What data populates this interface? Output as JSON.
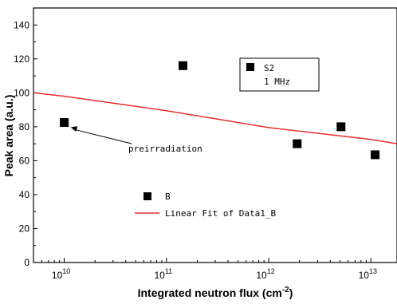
{
  "chart_data": {
    "type": "scatter",
    "xlabel": "Integrated neutron flux (cm-2)",
    "xlabel_base": "Integrated neutron flux (cm",
    "xlabel_exp": "-2",
    "xlabel_close": ")",
    "ylabel": "Peak area (a.u.)",
    "xscale": "log",
    "xlim": [
      5000000000.0,
      18000000000000.0
    ],
    "ylim": [
      0,
      150
    ],
    "xticks": [
      10000000000.0,
      100000000000.0,
      1000000000000.0,
      10000000000000.0
    ],
    "xtick_labels": [
      {
        "base": "10",
        "exp": "10"
      },
      {
        "base": "10",
        "exp": "11"
      },
      {
        "base": "10",
        "exp": "12"
      },
      {
        "base": "10",
        "exp": "13"
      }
    ],
    "yticks": [
      0,
      20,
      40,
      60,
      80,
      100,
      120,
      140
    ],
    "series": [
      {
        "name": "B",
        "marker": "square",
        "color": "#000000",
        "x": [
          10000000000.0,
          145000000000.0,
          1900000000000.0,
          5100000000000.0,
          11000000000000.0
        ],
        "y": [
          82.5,
          116,
          70,
          80,
          63.5
        ]
      }
    ],
    "fit": {
      "name": "Linear Fit of Data1_B",
      "color": "#e03030",
      "x": [
        5000000000.0,
        10000000000.0,
        100000000000.0,
        1000000000000.0,
        10000000000000.0,
        18000000000000.0
      ],
      "y": [
        100,
        98,
        89.5,
        79.5,
        72.5,
        70
      ]
    },
    "legend": {
      "position": "bottom-left",
      "entries": [
        "B",
        "Linear Fit of Data1_B"
      ]
    },
    "annotations": [
      {
        "text": "preirradiation",
        "arrow_to": [
          10000000000.0,
          82.5
        ]
      }
    ],
    "inset_label": {
      "title": "S2",
      "subtitle": "1 MHz"
    }
  }
}
